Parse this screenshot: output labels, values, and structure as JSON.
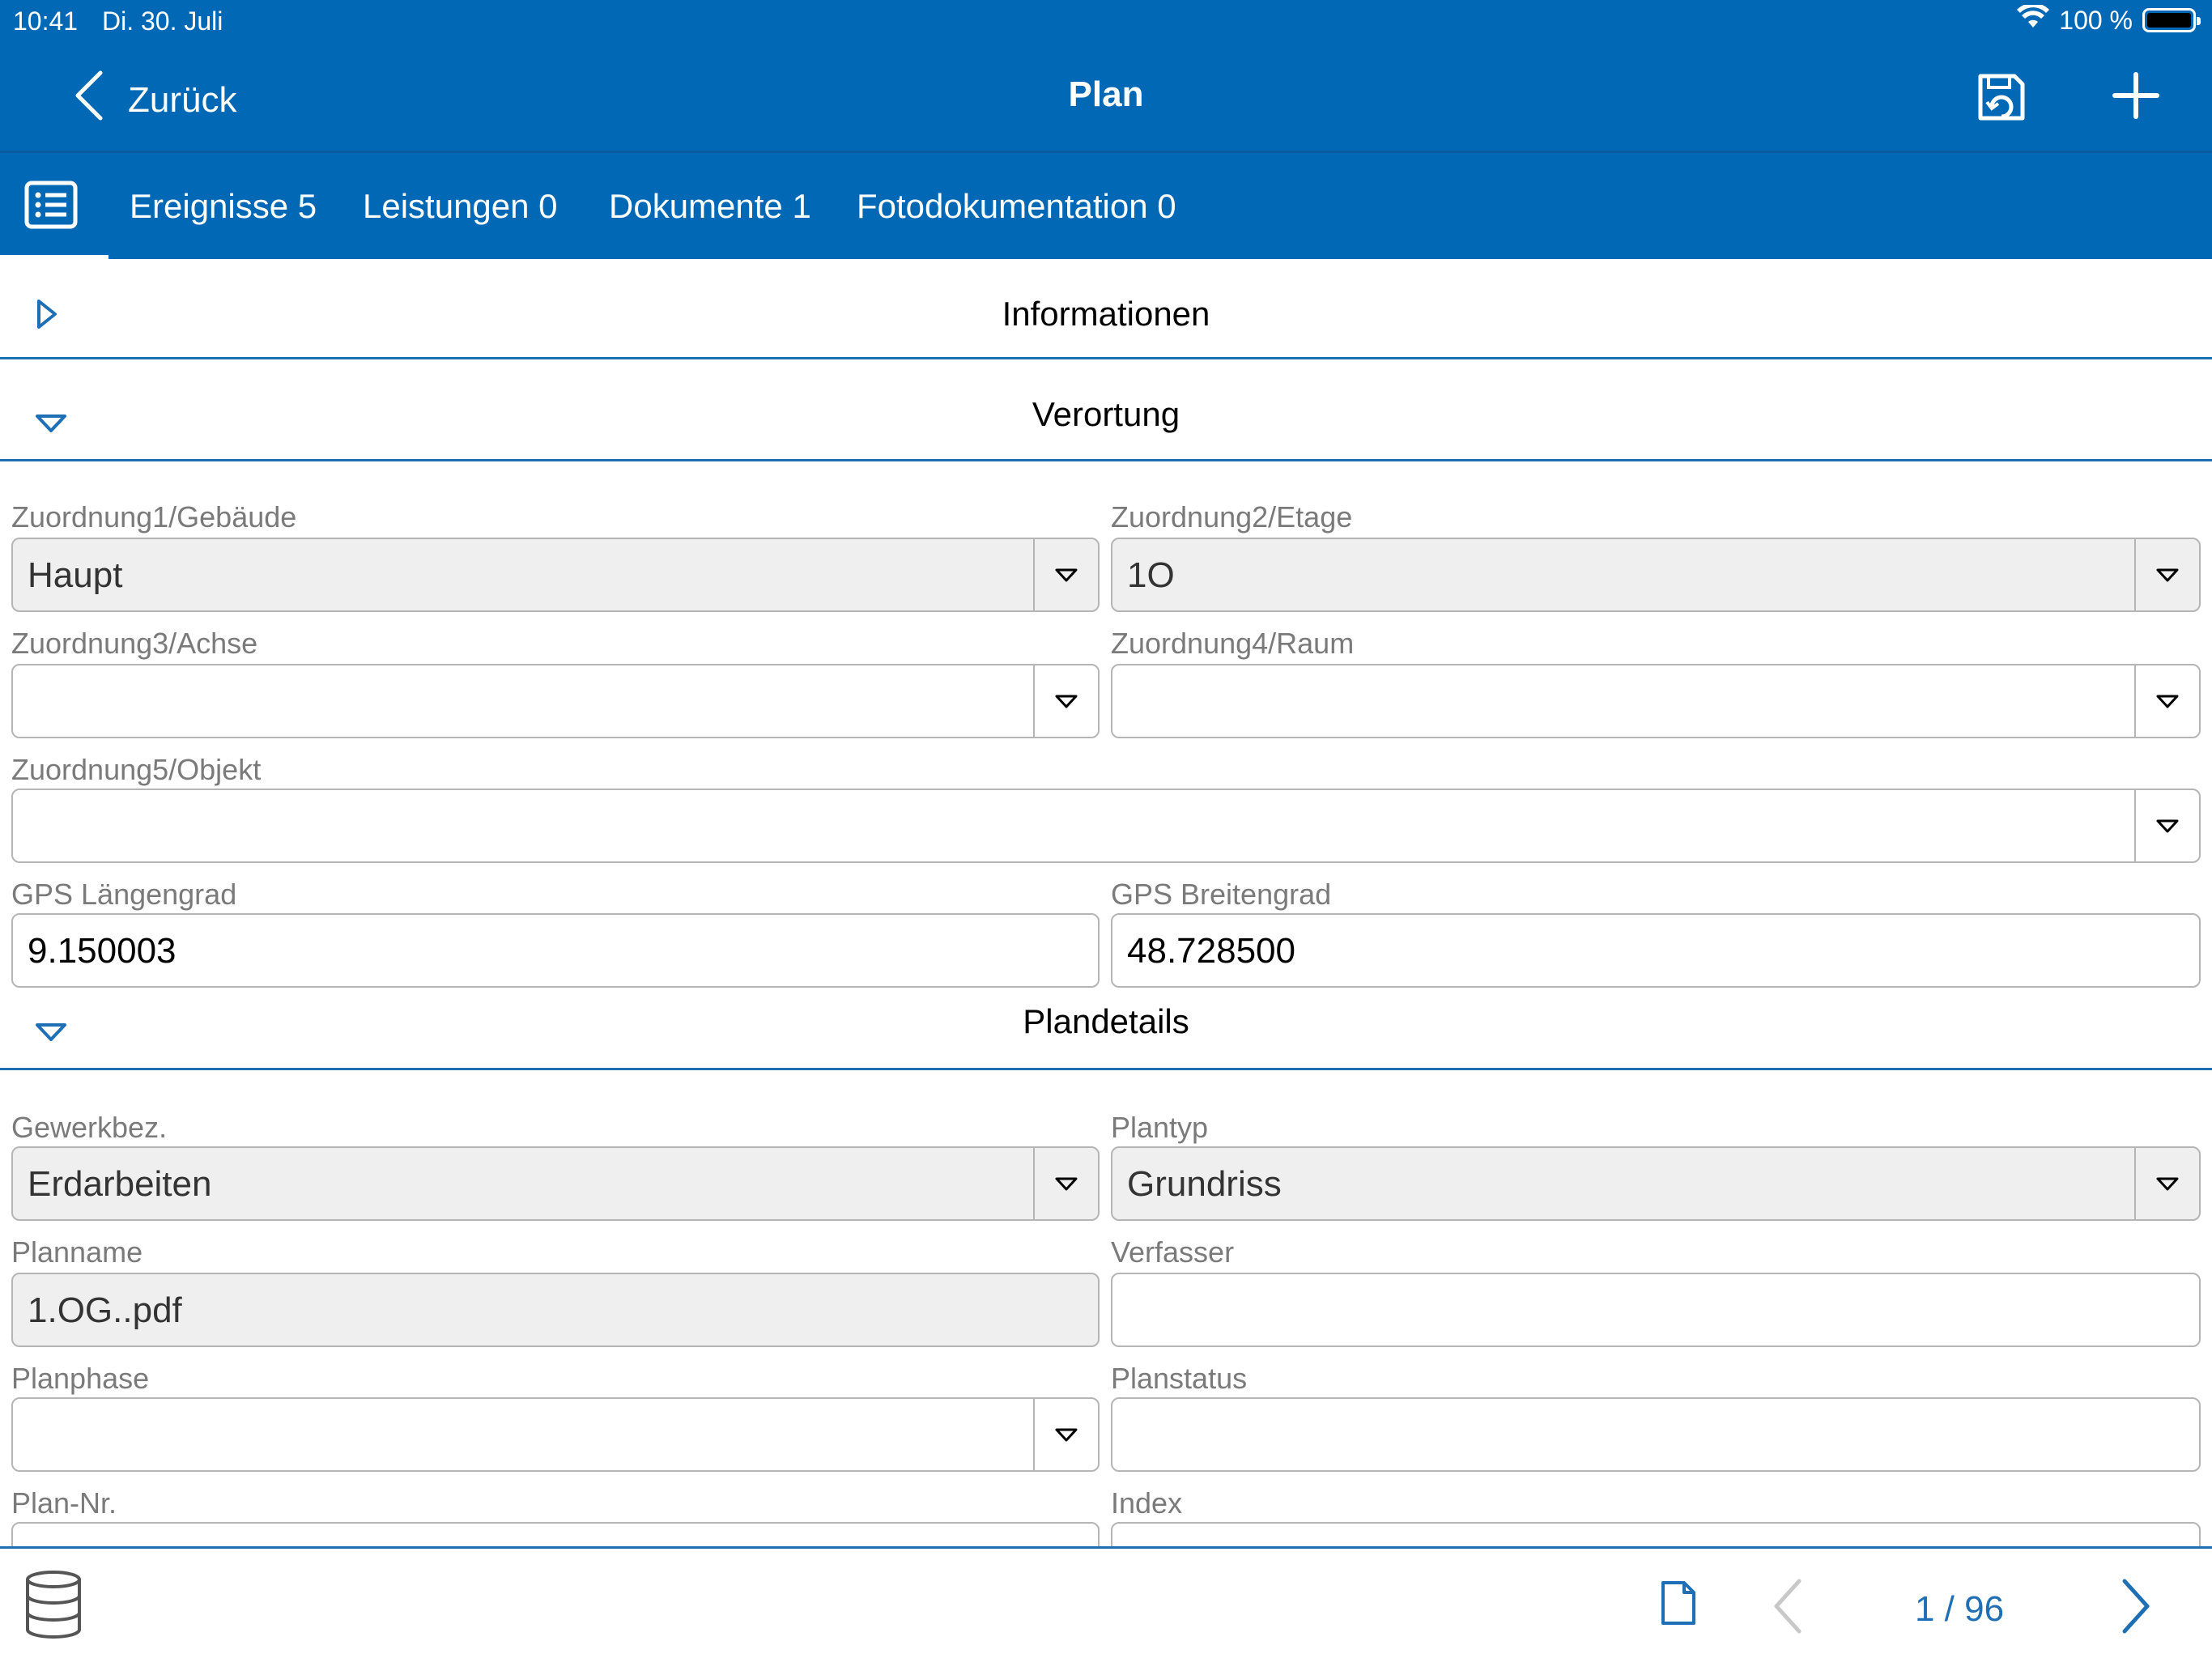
{
  "status_bar": {
    "time": "10:41",
    "date": "Di. 30. Juli",
    "battery": "100 %"
  },
  "navbar": {
    "back_label": "Zurück",
    "title": "Plan"
  },
  "tabs": [
    {
      "label": "Ereignisse 5"
    },
    {
      "label": "Leistungen 0"
    },
    {
      "label": "Dokumente 1"
    },
    {
      "label": "Fotodokumentation 0"
    }
  ],
  "sections": {
    "informationen": {
      "title": "Informationen",
      "expanded": false
    },
    "verortung": {
      "title": "Verortung",
      "expanded": true
    },
    "plandetails": {
      "title": "Plandetails",
      "expanded": true
    }
  },
  "verortung": {
    "zuordnung1": {
      "label": "Zuordnung1/Gebäude",
      "value": "Haupt"
    },
    "zuordnung2": {
      "label": "Zuordnung2/Etage",
      "value": "1O"
    },
    "zuordnung3": {
      "label": "Zuordnung3/Achse",
      "value": ""
    },
    "zuordnung4": {
      "label": "Zuordnung4/Raum",
      "value": ""
    },
    "zuordnung5": {
      "label": "Zuordnung5/Objekt",
      "value": ""
    },
    "gps_laengengrad": {
      "label": "GPS Längengrad",
      "value": "9.150003"
    },
    "gps_breitengrad": {
      "label": "GPS Breitengrad",
      "value": "48.728500"
    }
  },
  "plandetails": {
    "gewerkbez": {
      "label": "Gewerkbez.",
      "value": "Erdarbeiten"
    },
    "plantyp": {
      "label": "Plantyp",
      "value": "Grundriss"
    },
    "planname": {
      "label": "Planname",
      "value": "1.OG..pdf"
    },
    "verfasser": {
      "label": "Verfasser",
      "value": ""
    },
    "planphase": {
      "label": "Planphase",
      "value": ""
    },
    "planstatus": {
      "label": "Planstatus",
      "value": ""
    },
    "plan_nr": {
      "label": "Plan-Nr.",
      "value": ""
    },
    "index": {
      "label": "Index",
      "value": ""
    }
  },
  "bottom_bar": {
    "page_counter": "1 / 96"
  },
  "colors": {
    "brand_blue": "#0068b5",
    "accent_blue": "#1f6fb5",
    "field_grey": "#efefef"
  },
  "icons": [
    "chevron-left-icon",
    "save-icon",
    "plus-icon",
    "list-icon",
    "triangle-right-icon",
    "triangle-down-icon",
    "database-icon",
    "document-icon",
    "chevron-right-icon"
  ]
}
